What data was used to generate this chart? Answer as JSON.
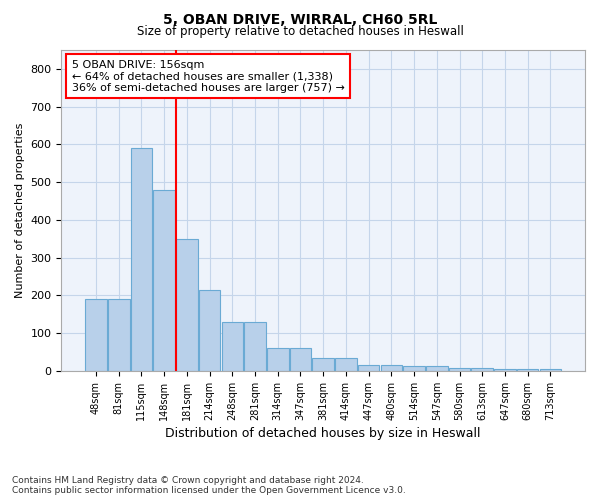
{
  "title1": "5, OBAN DRIVE, WIRRAL, CH60 5RL",
  "title2": "Size of property relative to detached houses in Heswall",
  "xlabel": "Distribution of detached houses by size in Heswall",
  "ylabel": "Number of detached properties",
  "bar_labels": [
    "48sqm",
    "81sqm",
    "115sqm",
    "148sqm",
    "181sqm",
    "214sqm",
    "248sqm",
    "281sqm",
    "314sqm",
    "347sqm",
    "381sqm",
    "414sqm",
    "447sqm",
    "480sqm",
    "514sqm",
    "547sqm",
    "580sqm",
    "613sqm",
    "647sqm",
    "680sqm",
    "713sqm"
  ],
  "bar_values": [
    190,
    190,
    590,
    480,
    350,
    215,
    130,
    130,
    60,
    60,
    35,
    35,
    15,
    15,
    12,
    12,
    8,
    8,
    5,
    5,
    5
  ],
  "bar_color": "#b8d0ea",
  "bar_edgecolor": "#6aaad4",
  "bg_color": "#eef3fb",
  "grid_color": "#c5d5ea",
  "red_line_x": 3.5,
  "annotation_text": "5 OBAN DRIVE: 156sqm\n← 64% of detached houses are smaller (1,338)\n36% of semi-detached houses are larger (757) →",
  "ylim": [
    0,
    850
  ],
  "yticks": [
    0,
    100,
    200,
    300,
    400,
    500,
    600,
    700,
    800
  ],
  "footer1": "Contains HM Land Registry data © Crown copyright and database right 2024.",
  "footer2": "Contains public sector information licensed under the Open Government Licence v3.0."
}
